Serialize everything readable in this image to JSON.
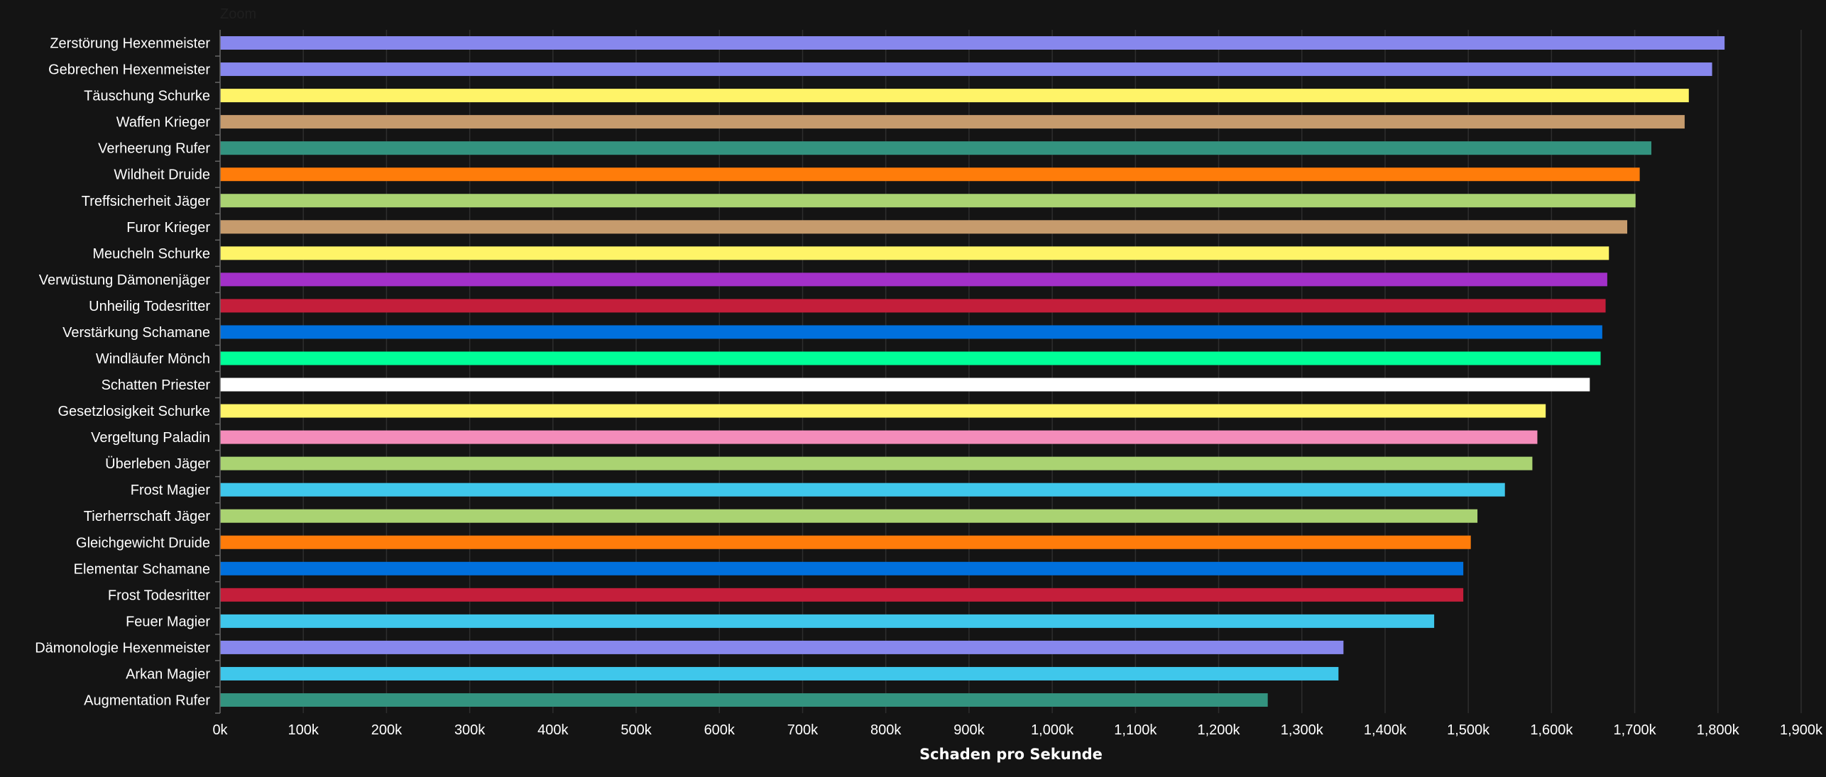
{
  "chart_data": {
    "type": "bar",
    "orientation": "horizontal",
    "zoom_label": "Zoom",
    "xlabel": "Schaden pro Sekunde",
    "ylabel": "",
    "xlim": [
      0,
      1900000
    ],
    "grid": true,
    "x_ticks": [
      "0k",
      "100k",
      "200k",
      "300k",
      "400k",
      "500k",
      "600k",
      "700k",
      "800k",
      "900k",
      "1,000k",
      "1,100k",
      "1,200k",
      "1,300k",
      "1,400k",
      "1,500k",
      "1,600k",
      "1,700k",
      "1,800k",
      "1,900k"
    ],
    "categories": [
      "Zerstörung Hexenmeister",
      "Gebrechen Hexenmeister",
      "Täuschung Schurke",
      "Waffen Krieger",
      "Verheerung Rufer",
      "Wildheit Druide",
      "Treffsicherheit Jäger",
      "Furor Krieger",
      "Meucheln Schurke",
      "Verwüstung Dämonenjäger",
      "Unheilig Todesritter",
      "Verstärkung Schamane",
      "Windläufer Mönch",
      "Schatten Priester",
      "Gesetzlosigkeit Schurke",
      "Vergeltung Paladin",
      "Überleben Jäger",
      "Frost Magier",
      "Tierherrschaft Jäger",
      "Gleichgewicht Druide",
      "Elementar Schamane",
      "Frost Todesritter",
      "Feuer Magier",
      "Dämonologie Hexenmeister",
      "Arkan Magier",
      "Augmentation Rufer"
    ],
    "values": [
      1808000,
      1793000,
      1765000,
      1760000,
      1720000,
      1706000,
      1701000,
      1691000,
      1669000,
      1667000,
      1665000,
      1661000,
      1659000,
      1646000,
      1593000,
      1583000,
      1577000,
      1544000,
      1511000,
      1503000,
      1494000,
      1494000,
      1459000,
      1350000,
      1344000,
      1259000
    ],
    "colors": [
      "#8787ED",
      "#8787ED",
      "#FFF468",
      "#C69B6D",
      "#33937F",
      "#FF7C0A",
      "#AAD372",
      "#C69B6D",
      "#FFF468",
      "#A330C9",
      "#C41E3A",
      "#0070DD",
      "#00FF98",
      "#FFFFFF",
      "#FFF468",
      "#F48CBA",
      "#AAD372",
      "#3FC7EB",
      "#AAD372",
      "#FF7C0A",
      "#0070DD",
      "#C41E3A",
      "#3FC7EB",
      "#8787ED",
      "#3FC7EB",
      "#33937F"
    ]
  }
}
